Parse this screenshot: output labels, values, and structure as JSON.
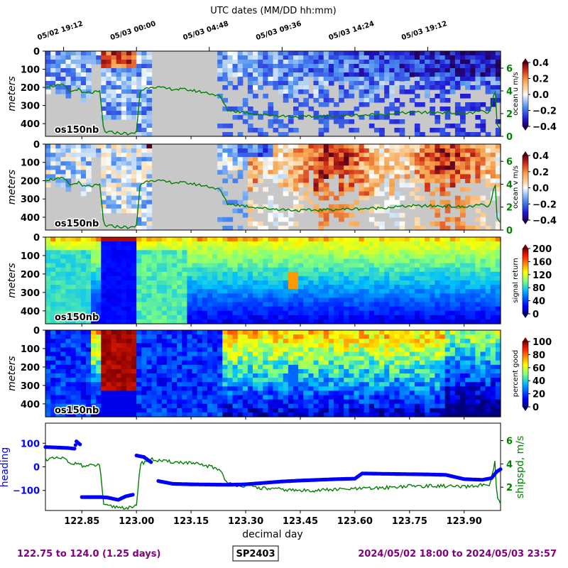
{
  "top_axis_label": "UTC dates (MM/DD hh:mm)",
  "top_ticks": [
    {
      "day": 122.8,
      "label": "05/02 19:12"
    },
    {
      "day": 123.0,
      "label": "05/03 00:00"
    },
    {
      "day": 123.2,
      "label": "05/03 04:48"
    },
    {
      "day": 123.4,
      "label": "05/03 09:36"
    },
    {
      "day": 123.6,
      "label": "05/03 14:24"
    },
    {
      "day": 123.8,
      "label": "05/03 19:12"
    }
  ],
  "footer": {
    "range": "122.75 to 124.0 (1.25 days)",
    "cruise": "SP2403",
    "dates": "2024/05/02 18:00 to 2024/05/03 23:57"
  },
  "colors": {
    "purple": "#800080",
    "ship_green": "#008000",
    "heading_blue": "#0000ff",
    "nodata_gray": "#c8c8c8"
  },
  "chart_data": [
    {
      "type": "heatmap",
      "instrument": "os150nb",
      "ylabel": "meters",
      "yticks": [
        0,
        100,
        200,
        300,
        400
      ],
      "ylim": [
        470,
        0
      ],
      "xlim": [
        122.75,
        124.0
      ],
      "colorbar_label": "ocean u m/s",
      "colorbar_ticks": [
        "0.4",
        "0.2",
        "0.0",
        "−0.2",
        "−0.4"
      ],
      "colormap": "bwr-diverging",
      "range": [
        -0.4,
        0.4
      ],
      "overlay_label": "shipspd",
      "overlay_ticks": [
        "6",
        "4",
        "2",
        "0"
      ],
      "overlay_ylim": [
        0,
        7.5
      ]
    },
    {
      "type": "heatmap",
      "instrument": "os150nb",
      "ylabel": "meters",
      "yticks": [
        0,
        100,
        200,
        300,
        400
      ],
      "ylim": [
        470,
        0
      ],
      "xlim": [
        122.75,
        124.0
      ],
      "colorbar_label": "ocean v m/s",
      "colorbar_ticks": [
        "0.4",
        "0.2",
        "0.0",
        "−0.2",
        "−0.4"
      ],
      "colormap": "bwr-diverging",
      "range": [
        -0.4,
        0.4
      ],
      "overlay_label": "shipspd",
      "overlay_ticks": [
        "6",
        "4",
        "2",
        "0"
      ],
      "overlay_ylim": [
        0,
        7.5
      ]
    },
    {
      "type": "heatmap",
      "instrument": "os150nb",
      "ylabel": "meters",
      "yticks": [
        0,
        100,
        200,
        300,
        400
      ],
      "ylim": [
        470,
        0
      ],
      "xlim": [
        122.75,
        124.0
      ],
      "colorbar_label": "signal return",
      "colorbar_ticks": [
        "200",
        "160",
        "120",
        "80",
        "40",
        "0"
      ],
      "colormap": "jet",
      "range": [
        0,
        210
      ]
    },
    {
      "type": "heatmap",
      "instrument": "os150nb",
      "ylabel": "meters",
      "yticks": [
        0,
        100,
        200,
        300,
        400
      ],
      "ylim": [
        470,
        0
      ],
      "xlim": [
        122.75,
        124.0
      ],
      "colorbar_label": "percent good",
      "colorbar_ticks": [
        "100",
        "80",
        "60",
        "40",
        "20",
        "0"
      ],
      "colormap": "jet",
      "range": [
        0,
        100
      ]
    },
    {
      "type": "scatter",
      "xlabel": "decimal day",
      "xticks": [
        "122.85",
        "123.00",
        "123.15",
        "123.30",
        "123.45",
        "123.60",
        "123.75",
        "123.90"
      ],
      "xtick_values": [
        122.85,
        123.0,
        123.15,
        123.3,
        123.45,
        123.6,
        123.75,
        123.9
      ],
      "xlim": [
        122.75,
        124.0
      ],
      "ylabel_left": "heading",
      "yticks_left": [
        "100",
        "0",
        "−100"
      ],
      "yticks_left_values": [
        100,
        0,
        -100
      ],
      "ylim_left": [
        -185,
        185
      ],
      "ylabel_right": "shipspd, m/s",
      "yticks_right": [
        "6",
        "4",
        "2"
      ],
      "yticks_right_values": [
        6,
        4,
        2
      ],
      "ylim_right": [
        0,
        7.5
      ],
      "heading_series": [
        [
          122.75,
          84
        ],
        [
          122.78,
          82
        ],
        [
          122.81,
          80
        ],
        [
          122.83,
          77
        ],
        [
          122.835,
          108
        ],
        [
          122.845,
          95
        ],
        [
          122.85,
          -128
        ],
        [
          122.88,
          -128
        ],
        [
          122.9,
          -128
        ],
        [
          122.92,
          -130
        ],
        [
          122.95,
          -140
        ],
        [
          122.97,
          -125
        ],
        [
          122.99,
          -118
        ],
        [
          123.0,
          48
        ],
        [
          123.02,
          42
        ],
        [
          123.04,
          20
        ],
        [
          123.06,
          -60
        ],
        [
          123.1,
          -72
        ],
        [
          123.15,
          -74
        ],
        [
          123.2,
          -75
        ],
        [
          123.25,
          -76
        ],
        [
          123.3,
          -74
        ],
        [
          123.35,
          -68
        ],
        [
          123.4,
          -62
        ],
        [
          123.45,
          -58
        ],
        [
          123.5,
          -55
        ],
        [
          123.55,
          -52
        ],
        [
          123.6,
          -50
        ],
        [
          123.62,
          -28
        ],
        [
          123.7,
          -30
        ],
        [
          123.8,
          -32
        ],
        [
          123.85,
          -34
        ],
        [
          123.9,
          -52
        ],
        [
          123.95,
          -55
        ],
        [
          123.975,
          -48
        ],
        [
          123.99,
          -20
        ],
        [
          124.0,
          -10
        ]
      ],
      "shipspd_series": [
        [
          122.75,
          4.4
        ],
        [
          122.8,
          4.5
        ],
        [
          122.82,
          3.9
        ],
        [
          122.84,
          4.2
        ],
        [
          122.85,
          3.8
        ],
        [
          122.9,
          3.9
        ],
        [
          122.91,
          0.4
        ],
        [
          122.95,
          0.3
        ],
        [
          122.99,
          0.2
        ],
        [
          123.0,
          0.4
        ],
        [
          123.01,
          4.0
        ],
        [
          123.04,
          4.4
        ],
        [
          123.08,
          4.2
        ],
        [
          123.14,
          4.1
        ],
        [
          123.2,
          3.8
        ],
        [
          123.23,
          3.5
        ],
        [
          123.25,
          2.3
        ],
        [
          123.3,
          2.1
        ],
        [
          123.35,
          1.9
        ],
        [
          123.45,
          1.7
        ],
        [
          123.55,
          1.8
        ],
        [
          123.65,
          1.9
        ],
        [
          123.75,
          2.1
        ],
        [
          123.85,
          2.1
        ],
        [
          123.9,
          2.0
        ],
        [
          123.95,
          2.2
        ],
        [
          123.97,
          2.0
        ],
        [
          123.985,
          4.2
        ],
        [
          123.99,
          1.0
        ],
        [
          124.0,
          0.6
        ]
      ]
    }
  ]
}
